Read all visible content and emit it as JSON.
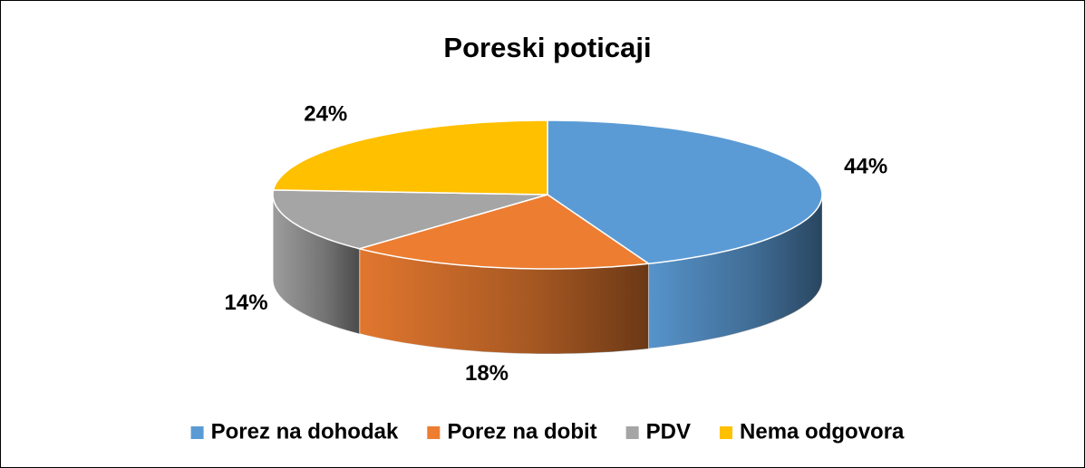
{
  "chart_data": {
    "type": "pie",
    "title": "Poreski poticaji",
    "categories": [
      "Porez na dohodak",
      "Porez na dobit",
      "PDV",
      "Nema odgovora"
    ],
    "values": [
      44,
      18,
      14,
      24
    ],
    "value_labels": [
      "44%",
      "18%",
      "14%",
      "24%"
    ],
    "colors": [
      "#5b9bd5",
      "#ed7d31",
      "#a5a5a5",
      "#ffc000"
    ],
    "legend": "bottom"
  }
}
